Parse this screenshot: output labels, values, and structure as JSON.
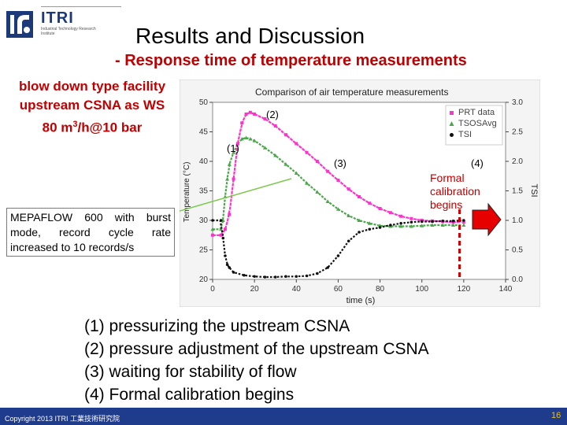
{
  "logo": {
    "name": "ITRI",
    "subtitle": "Industrial Technology Research Institute"
  },
  "slide": {
    "title": "Results and Discussion",
    "subtitle": "- Response time of temperature measurements",
    "facility_lines": [
      "blow down type facility",
      "upstream CSNA as WS"
    ],
    "facility_rate_prefix": "80 m",
    "facility_rate_sup": "3",
    "facility_rate_suffix": "/h@10 bar",
    "mepaflow_note": "MEPAFLOW 600 with burst mode, record cycle rate increased to 10 records/s",
    "notes": [
      "(1) pressurizing the upstream CSNA",
      "(2) pressure adjustment of the upstream CSNA",
      "(3) waiting for stability of flow",
      "(4) Formal calibration begins"
    ],
    "copyright": "Copyright 2013 ITRI 工業技術研究院",
    "page": "16"
  },
  "chart_data": {
    "type": "line",
    "title": "Comparison of air temperature measurements",
    "xlabel": "time (s)",
    "ylabel": "Temperature (°C)",
    "y2label": "TSI",
    "xlim": [
      0,
      140
    ],
    "ylim": [
      20,
      50
    ],
    "y2lim": [
      0.0,
      3.0
    ],
    "xticks": [
      0,
      20,
      40,
      60,
      80,
      100,
      120,
      140
    ],
    "yticks": [
      20,
      25,
      30,
      35,
      40,
      45,
      50
    ],
    "y2ticks": [
      "0.0",
      "0.5",
      "1.0",
      "1.5",
      "2.0",
      "2.5",
      "3.0"
    ],
    "legend_position": "top-right",
    "series": [
      {
        "name": "PRT data",
        "color": "#ff33cc",
        "marker": "square",
        "axis": "left",
        "x": [
          0,
          4,
          6,
          8,
          10,
          12,
          14,
          16,
          18,
          20,
          25,
          30,
          35,
          40,
          45,
          50,
          55,
          60,
          65,
          70,
          75,
          80,
          85,
          90,
          95,
          100,
          105,
          110,
          115,
          120
        ],
        "y": [
          27.5,
          27.5,
          28.5,
          31,
          37,
          43,
          46.5,
          48,
          48.3,
          48,
          47.2,
          46,
          44.5,
          43,
          41.5,
          40,
          38.3,
          36.8,
          35.3,
          34,
          32.9,
          32,
          31.3,
          30.7,
          30.3,
          30,
          29.9,
          29.8,
          29.7,
          29.7
        ]
      },
      {
        "name": "TSOSAvg",
        "color": "#4aa84a",
        "marker": "triangle",
        "axis": "left",
        "x": [
          0,
          4,
          5,
          6,
          7,
          8,
          10,
          12,
          14,
          16,
          18,
          20,
          25,
          30,
          35,
          40,
          45,
          50,
          55,
          60,
          65,
          70,
          75,
          80,
          85,
          90,
          95,
          100,
          105,
          110,
          115,
          120
        ],
        "y": [
          28.5,
          28.5,
          30,
          34,
          37,
          39.5,
          41.5,
          43,
          43.8,
          44,
          43.8,
          43.5,
          42.3,
          41,
          39.5,
          38,
          36.3,
          34.8,
          33.2,
          31.9,
          30.8,
          30,
          29.5,
          29.1,
          29,
          29,
          29,
          29.1,
          29.2,
          29.2,
          29.2,
          29.2
        ]
      },
      {
        "name": "TSI",
        "color": "#111111",
        "marker": "circle",
        "axis": "right",
        "x": [
          0,
          4,
          5,
          6,
          7,
          8,
          10,
          15,
          20,
          25,
          30,
          35,
          40,
          45,
          50,
          55,
          60,
          65,
          70,
          75,
          80,
          85,
          90,
          95,
          100,
          105,
          110,
          115,
          120
        ],
        "y": [
          1.0,
          1.0,
          0.7,
          0.4,
          0.25,
          0.2,
          0.12,
          0.07,
          0.05,
          0.04,
          0.04,
          0.05,
          0.05,
          0.06,
          0.1,
          0.2,
          0.4,
          0.65,
          0.8,
          0.85,
          0.88,
          0.92,
          0.95,
          0.97,
          0.98,
          0.98,
          0.99,
          0.99,
          1.0
        ]
      }
    ],
    "annotations": [
      "(1)",
      "(2)",
      "(3)",
      "(4)"
    ],
    "calibration_label": "Formal calibration begins",
    "calibration_time": 118
  }
}
